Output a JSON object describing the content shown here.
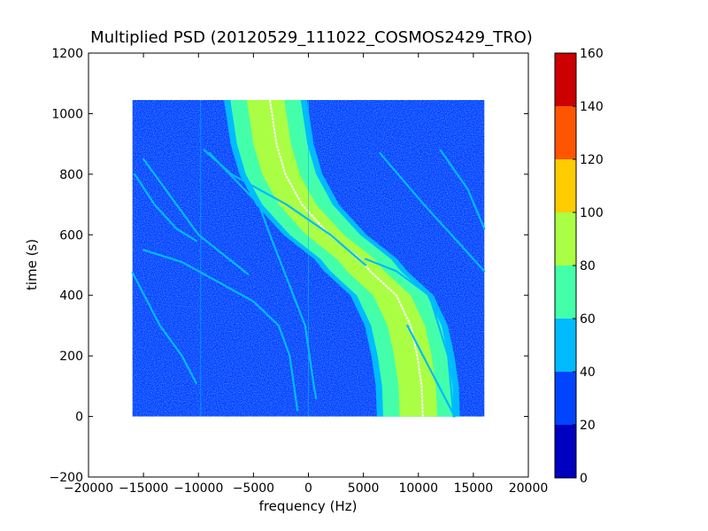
{
  "chart_data": {
    "type": "heatmap",
    "title": "Multiplied PSD (20120529_111022_COSMOS2429_TRO)",
    "xlabel": "frequency (Hz)",
    "ylabel": "time (s)",
    "xlim": [
      -20000,
      20000
    ],
    "ylim": [
      -200,
      1200
    ],
    "xticks": [
      -20000,
      -15000,
      -10000,
      -5000,
      0,
      5000,
      10000,
      15000,
      20000
    ],
    "xtick_labels": [
      "−20000",
      "−15000",
      "−10000",
      "−5000",
      "0",
      "5000",
      "10000",
      "15000",
      "20000"
    ],
    "yticks": [
      -200,
      0,
      200,
      400,
      600,
      800,
      1000,
      1200
    ],
    "ytick_labels": [
      "−200",
      "0",
      "200",
      "400",
      "600",
      "800",
      "1000",
      "1200"
    ],
    "data_extent": {
      "x": [
        -16000,
        16000
      ],
      "y": [
        0,
        1045
      ]
    },
    "background_value_range": [
      20,
      40
    ],
    "grid": false,
    "colorbar": {
      "levels": [
        0,
        20,
        40,
        60,
        80,
        100,
        120,
        140,
        160
      ],
      "tick_labels": [
        "0",
        "20",
        "40",
        "60",
        "80",
        "100",
        "120",
        "140",
        "160"
      ],
      "colors": [
        "#0000c0",
        "#0044ff",
        "#00bbff",
        "#44ffaa",
        "#aaff44",
        "#ffcc00",
        "#ff5500",
        "#cc0000"
      ]
    },
    "main_trace": {
      "description_units": "frequency (Hz) at time (s)",
      "center": [
        {
          "t": 0,
          "f": 10000
        },
        {
          "t": 100,
          "f": 9900
        },
        {
          "t": 200,
          "f": 9500
        },
        {
          "t": 300,
          "f": 8900
        },
        {
          "t": 400,
          "f": 7600
        },
        {
          "t": 480,
          "f": 5200
        },
        {
          "t": 520,
          "f": 4300
        },
        {
          "t": 600,
          "f": 1500
        },
        {
          "t": 700,
          "f": -1000
        },
        {
          "t": 800,
          "f": -2500
        },
        {
          "t": 900,
          "f": -3300
        },
        {
          "t": 1045,
          "f": -3900
        }
      ],
      "inner_half_width_hz": 1700,
      "outer_half_width_hz": 3200,
      "peak_level_range": [
        60,
        100
      ]
    },
    "secondary_traces": [
      {
        "points": [
          [
            0,
            13200
          ],
          [
            200,
            12700
          ],
          [
            400,
            11000
          ],
          [
            480,
            8000
          ],
          [
            520,
            5200
          ]
        ]
      },
      {
        "points": [
          [
            500,
            5200
          ],
          [
            600,
            2000
          ],
          [
            700,
            -2000
          ],
          [
            800,
            -7000
          ],
          [
            880,
            -9500
          ]
        ]
      },
      {
        "points": [
          [
            20,
            -1000
          ],
          [
            200,
            -1700
          ],
          [
            300,
            -2700
          ],
          [
            380,
            -5000
          ],
          [
            460,
            -9000
          ],
          [
            510,
            -11500
          ],
          [
            550,
            -15000
          ]
        ]
      },
      {
        "points": [
          [
            60,
            700
          ],
          [
            100,
            500
          ],
          [
            300,
            -300
          ],
          [
            600,
            -3500
          ],
          [
            700,
            -4500
          ],
          [
            870,
            -9000
          ]
        ]
      },
      {
        "points": [
          [
            0,
            13300
          ],
          [
            300,
            9000
          ]
        ]
      },
      {
        "points": [
          [
            480,
            16000
          ],
          [
            600,
            13000
          ],
          [
            700,
            10500
          ],
          [
            870,
            6500
          ]
        ]
      },
      {
        "points": [
          [
            620,
            16000
          ],
          [
            750,
            14500
          ],
          [
            880,
            12000
          ]
        ]
      },
      {
        "points": [
          [
            110,
            -10200
          ],
          [
            200,
            -11500
          ],
          [
            300,
            -13500
          ],
          [
            475,
            -16000
          ]
        ]
      },
      {
        "points": [
          [
            580,
            -10200
          ],
          [
            620,
            -12000
          ],
          [
            700,
            -14000
          ],
          [
            800,
            -15800
          ]
        ]
      },
      {
        "points": [
          [
            470,
            -5500
          ],
          [
            600,
            -10000
          ],
          [
            850,
            -15000
          ]
        ]
      }
    ]
  }
}
